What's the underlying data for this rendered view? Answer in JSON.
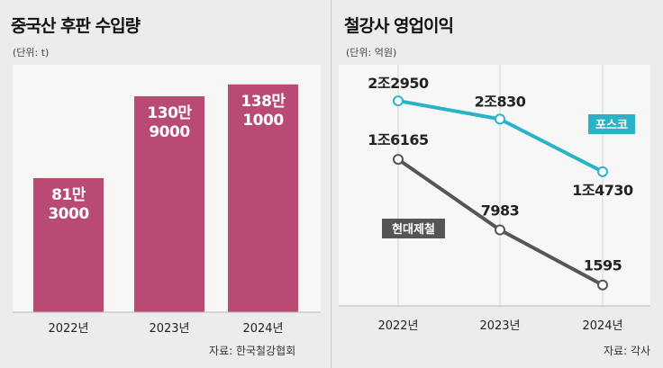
{
  "left_chart": {
    "title": "중국산 후판 수입량",
    "unit": "(단위: t)",
    "source": "자료: 한국철강협회"
  },
  "right_chart": {
    "title": "철강사 영업이익",
    "unit": "(단위: 억원)",
    "source": "자료: 각사"
  },
  "chart_data": [
    {
      "type": "bar",
      "title": "중국산 후판 수입량",
      "unit": "t",
      "categories": [
        "2022년",
        "2023년",
        "2024년"
      ],
      "values": [
        813000,
        1309000,
        1381000
      ],
      "data_labels": [
        [
          "81만",
          "3000"
        ],
        [
          "130만",
          "9000"
        ],
        [
          "138만",
          "1000"
        ]
      ],
      "ylim": [
        0,
        1500000
      ],
      "color": "#b94a73"
    },
    {
      "type": "line",
      "title": "철강사 영업이익",
      "unit": "억원",
      "categories": [
        "2022년",
        "2023년",
        "2024년"
      ],
      "ylim": [
        0,
        24000
      ],
      "series": [
        {
          "name": "포스코",
          "values": [
            22950,
            20830,
            14730
          ],
          "labels": [
            "2조2950",
            "2조830",
            "1조4730"
          ],
          "color": "#29b3c9"
        },
        {
          "name": "현대제철",
          "values": [
            16165,
            7983,
            1595
          ],
          "labels": [
            "1조6165",
            "7983",
            "1595"
          ],
          "color": "#555555"
        }
      ]
    }
  ]
}
